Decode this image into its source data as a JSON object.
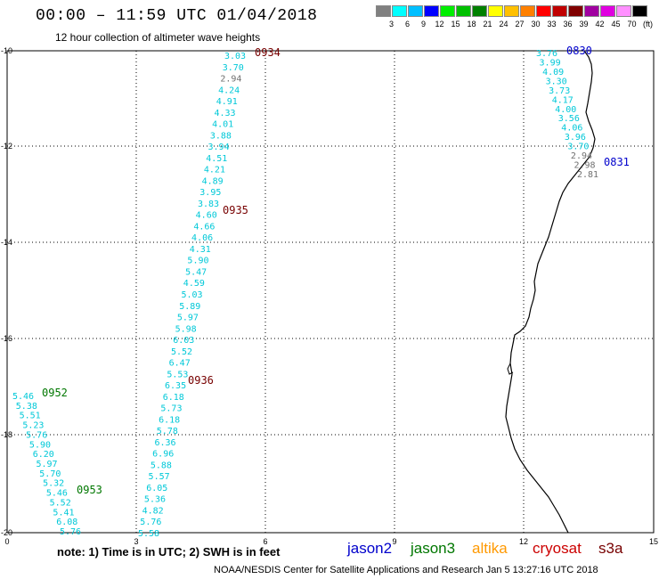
{
  "header": {
    "title": "00:00 – 11:59 UTC 01/04/2018",
    "subtitle": "12 hour collection of altimeter wave heights"
  },
  "color_scale": {
    "colors": [
      "#808080",
      "#00ffff",
      "#00bfff",
      "#0000ff",
      "#00ee00",
      "#00c000",
      "#008000",
      "#ffff00",
      "#ffc000",
      "#ff8000",
      "#ff0000",
      "#c00000",
      "#800000",
      "#a000a0",
      "#e000e0",
      "#ff90ff",
      "#000000"
    ],
    "labels": [
      "3",
      "6",
      "9",
      "12",
      "15",
      "18",
      "21",
      "24",
      "27",
      "30",
      "33",
      "36",
      "39",
      "42",
      "45",
      "70",
      "(ft)"
    ]
  },
  "axes": {
    "x_ticks": [
      "0",
      "3",
      "6",
      "9",
      "12",
      "15"
    ],
    "y_ticks": [
      "-10",
      "-12",
      "-14",
      "-16",
      "-18",
      "-20"
    ]
  },
  "track_colors": {
    "cyan": "#00c8d8",
    "gray": "#707070",
    "jason2": "#0000cc",
    "jason3": "#007700",
    "cryosat": "#770000"
  },
  "tracks": [
    {
      "values": [
        "3.03",
        "3.70",
        "2.94",
        "4.24",
        "4.91",
        "4.33",
        "4.01",
        "3.88",
        "3.94",
        "4.51",
        "4.21",
        "4.89",
        "3.95",
        "3.83",
        "4.60",
        "4.66",
        "4.06",
        "4.31",
        "5.90",
        "5.47",
        "4.59",
        "5.03",
        "5.89",
        "5.97",
        "5.98",
        "6.03",
        "5.52",
        "6.47",
        "5.53",
        "6.35",
        "6.18",
        "5.73",
        "6.18",
        "5.78",
        "6.36",
        "6.96",
        "5.88",
        "5.57",
        "6.05",
        "5.36",
        "4.82",
        "5.76",
        "5.58"
      ],
      "gray": [
        2
      ]
    },
    {
      "values": [
        "3.76",
        "3.99",
        "4.09",
        "3.30",
        "3.73",
        "4.17",
        "4.00",
        "3.56",
        "4.06",
        "3.96",
        "3.70",
        "2.94",
        "2.98",
        "2.81"
      ],
      "gray": [
        11,
        12,
        13
      ]
    },
    {
      "values": [
        "5.46",
        "5.38",
        "5.51",
        "5.23",
        "5.76",
        "5.90",
        "6.20",
        "5.97",
        "5.70",
        "5.32",
        "5.46",
        "5.52",
        "5.41",
        "6.08",
        "5.76"
      ],
      "gray": []
    }
  ],
  "time_labels": [
    {
      "text": "0934",
      "sat": "cryosat"
    },
    {
      "text": "0935",
      "sat": "cryosat"
    },
    {
      "text": "0936",
      "sat": "cryosat"
    },
    {
      "text": "0830",
      "sat": "jason2"
    },
    {
      "text": "0831",
      "sat": "jason2"
    },
    {
      "text": "0952",
      "sat": "jason3"
    },
    {
      "text": "0953",
      "sat": "jason3"
    }
  ],
  "footer": {
    "note": "note: 1) Time is in UTC; 2) SWH is in feet",
    "satellites": [
      {
        "name": "jason2",
        "color": "#0000cc"
      },
      {
        "name": "jason3",
        "color": "#007700"
      },
      {
        "name": "altika",
        "color": "#ff9900"
      },
      {
        "name": "cryosat",
        "color": "#cc0000"
      },
      {
        "name": "s3a",
        "color": "#770000"
      }
    ],
    "credit": "NOAA/NESDIS Center for Satellite Applications and Research   Jan 5 13:27:16 UTC 2018"
  }
}
